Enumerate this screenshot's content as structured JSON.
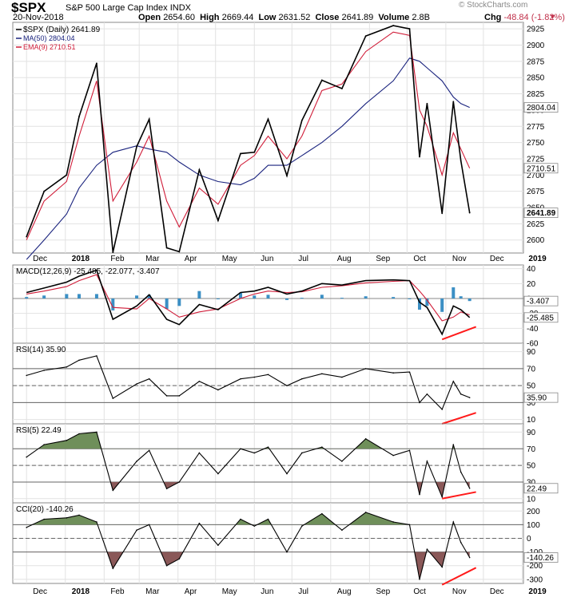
{
  "header": {
    "symbol": "$SPX",
    "name": "S&P 500 Large Cap Index",
    "exchange": "INDX",
    "date": "20-Nov-2018",
    "brand": "© StockCharts.com",
    "open_label": "Open",
    "open": "2654.60",
    "high_label": "High",
    "high": "2669.44",
    "low_label": "Low",
    "low": "2631.52",
    "close_label": "Close",
    "close": "2641.89",
    "volume_label": "Volume",
    "volume": "2.8B",
    "chg_label": "Chg",
    "chg": "-48.84 (-1.82%)"
  },
  "colors": {
    "price": "#000000",
    "ma": "#1a237e",
    "ema": "#d01c38",
    "hist": "#3b8fc4",
    "green_fill": "#6f8f5a",
    "red_fill": "#8a5858",
    "trend": "#ff1a1a",
    "grid": "#bbbbbb",
    "tag_bg": "#ffffff"
  },
  "chart_data": [
    {
      "type": "line",
      "title": "$SPX (Daily) 2641.89",
      "x": [
        "2017-12-01",
        "2017-12-15",
        "2018-01-02",
        "2018-01-12",
        "2018-01-26",
        "2018-02-08",
        "2018-02-27",
        "2018-03-09",
        "2018-03-23",
        "2018-04-02",
        "2018-04-18",
        "2018-05-03",
        "2018-05-21",
        "2018-06-01",
        "2018-06-12",
        "2018-06-27",
        "2018-07-09",
        "2018-07-25",
        "2018-08-10",
        "2018-08-29",
        "2018-09-20",
        "2018-10-03",
        "2018-10-11",
        "2018-10-17",
        "2018-10-29",
        "2018-11-07",
        "2018-11-13",
        "2018-11-20"
      ],
      "series": [
        {
          "name": "$SPX (Daily)",
          "values": [
            2605,
            2675,
            2700,
            2790,
            2872,
            2581,
            2744,
            2786,
            2588,
            2582,
            2708,
            2630,
            2733,
            2735,
            2786,
            2699,
            2784,
            2846,
            2833,
            2914,
            2930,
            2925,
            2728,
            2810,
            2641,
            2813,
            2722,
            2641.89
          ]
        },
        {
          "name": "MA(50)",
          "values": [
            2570,
            2600,
            2640,
            2680,
            2715,
            2735,
            2745,
            2740,
            2735,
            2720,
            2700,
            2690,
            2685,
            2695,
            2715,
            2715,
            2730,
            2750,
            2775,
            2810,
            2845,
            2880,
            2875,
            2865,
            2845,
            2820,
            2810,
            2804.04
          ]
        },
        {
          "name": "EMA(9)",
          "values": [
            2600,
            2660,
            2690,
            2760,
            2845,
            2660,
            2720,
            2760,
            2660,
            2620,
            2680,
            2655,
            2715,
            2730,
            2760,
            2725,
            2760,
            2830,
            2840,
            2890,
            2920,
            2915,
            2800,
            2775,
            2700,
            2765,
            2740,
            2710.51
          ]
        }
      ],
      "yticks": [
        2600,
        2625,
        2650,
        2675,
        2700,
        2725,
        2750,
        2775,
        2800,
        2825,
        2850,
        2875,
        2900,
        2925
      ],
      "ylim": [
        2580,
        2935
      ],
      "tags": [
        "2804.04",
        "2710.51",
        "2641.89"
      ]
    },
    {
      "type": "line",
      "title": "MACD(12,26,9) -25.485, -22.077, -3.407",
      "x": [
        "2017-12-01",
        "2017-12-15",
        "2018-01-02",
        "2018-01-12",
        "2018-01-26",
        "2018-02-08",
        "2018-02-27",
        "2018-03-09",
        "2018-03-23",
        "2018-04-02",
        "2018-04-18",
        "2018-05-03",
        "2018-05-21",
        "2018-06-01",
        "2018-06-12",
        "2018-06-27",
        "2018-07-09",
        "2018-07-25",
        "2018-08-10",
        "2018-08-29",
        "2018-09-20",
        "2018-10-03",
        "2018-10-11",
        "2018-10-17",
        "2018-10-29",
        "2018-11-07",
        "2018-11-13",
        "2018-11-20"
      ],
      "series": [
        {
          "name": "MACD",
          "values": [
            8,
            14,
            22,
            30,
            38,
            -28,
            -10,
            5,
            -28,
            -35,
            -8,
            -15,
            8,
            10,
            15,
            6,
            10,
            20,
            18,
            24,
            25,
            24,
            -5,
            -12,
            -48,
            -10,
            -15,
            -25.485
          ]
        },
        {
          "name": "Signal",
          "values": [
            6,
            10,
            16,
            24,
            32,
            -12,
            -14,
            0,
            -14,
            -25,
            -18,
            -14,
            0,
            6,
            10,
            8,
            9,
            15,
            17,
            21,
            23,
            24,
            10,
            -2,
            -30,
            -25,
            -18,
            -22.077
          ]
        },
        {
          "name": "Histogram",
          "values": [
            2,
            4,
            6,
            6,
            6,
            -16,
            4,
            5,
            -14,
            -10,
            10,
            -1,
            8,
            4,
            5,
            -2,
            1,
            5,
            1,
            3,
            2,
            0,
            -15,
            -10,
            -18,
            15,
            3,
            -3.407
          ]
        }
      ],
      "yticks": [
        -60,
        -40,
        -20,
        0,
        20,
        40
      ],
      "ylim": [
        -60,
        45
      ],
      "tags": [
        "-3.407",
        "-25.485"
      ]
    },
    {
      "type": "line",
      "title": "RSI(14) 35.90",
      "x": [
        "2017-12-01",
        "2017-12-15",
        "2018-01-02",
        "2018-01-12",
        "2018-01-26",
        "2018-02-08",
        "2018-02-27",
        "2018-03-09",
        "2018-03-23",
        "2018-04-02",
        "2018-04-18",
        "2018-05-03",
        "2018-05-21",
        "2018-06-01",
        "2018-06-12",
        "2018-06-27",
        "2018-07-09",
        "2018-07-25",
        "2018-08-10",
        "2018-08-29",
        "2018-09-20",
        "2018-10-03",
        "2018-10-11",
        "2018-10-17",
        "2018-10-29",
        "2018-11-07",
        "2018-11-13",
        "2018-11-20"
      ],
      "series": [
        {
          "name": "RSI(14)",
          "values": [
            62,
            68,
            72,
            80,
            85,
            35,
            52,
            58,
            38,
            38,
            55,
            45,
            58,
            60,
            63,
            50,
            58,
            64,
            60,
            70,
            65,
            66,
            30,
            40,
            22,
            55,
            40,
            35.9
          ]
        }
      ],
      "yticks": [
        10,
        30,
        50,
        70,
        90
      ],
      "ylim": [
        5,
        100
      ],
      "tags": [
        "35.90"
      ]
    },
    {
      "type": "line",
      "title": "RSI(5) 22.49",
      "x": [
        "2017-12-01",
        "2017-12-15",
        "2018-01-02",
        "2018-01-12",
        "2018-01-26",
        "2018-02-08",
        "2018-02-27",
        "2018-03-09",
        "2018-03-23",
        "2018-04-02",
        "2018-04-18",
        "2018-05-03",
        "2018-05-21",
        "2018-06-01",
        "2018-06-12",
        "2018-06-27",
        "2018-07-09",
        "2018-07-25",
        "2018-08-10",
        "2018-08-29",
        "2018-09-20",
        "2018-10-03",
        "2018-10-11",
        "2018-10-17",
        "2018-10-29",
        "2018-11-07",
        "2018-11-13",
        "2018-11-20"
      ],
      "series": [
        {
          "name": "RSI(5)",
          "values": [
            60,
            75,
            80,
            88,
            90,
            20,
            55,
            68,
            22,
            30,
            65,
            40,
            70,
            65,
            72,
            40,
            65,
            72,
            55,
            82,
            62,
            68,
            15,
            55,
            12,
            75,
            42,
            22.49
          ]
        }
      ],
      "yticks": [
        10,
        30,
        50,
        70,
        90
      ],
      "ylim": [
        5,
        100
      ],
      "tags": [
        "22.49"
      ]
    },
    {
      "type": "line",
      "title": "CCI(20) -140.26",
      "x": [
        "2017-12-01",
        "2017-12-15",
        "2018-01-02",
        "2018-01-12",
        "2018-01-26",
        "2018-02-08",
        "2018-02-27",
        "2018-03-09",
        "2018-03-23",
        "2018-04-02",
        "2018-04-18",
        "2018-05-03",
        "2018-05-21",
        "2018-06-01",
        "2018-06-12",
        "2018-06-27",
        "2018-07-09",
        "2018-07-25",
        "2018-08-10",
        "2018-08-29",
        "2018-09-20",
        "2018-10-03",
        "2018-10-11",
        "2018-10-17",
        "2018-10-29",
        "2018-11-07",
        "2018-11-13",
        "2018-11-20"
      ],
      "series": [
        {
          "name": "CCI(20)",
          "values": [
            80,
            140,
            150,
            170,
            120,
            -220,
            60,
            100,
            -200,
            -150,
            110,
            -50,
            140,
            90,
            140,
            -100,
            90,
            180,
            60,
            190,
            120,
            100,
            -300,
            -80,
            -210,
            120,
            -30,
            -140.26
          ]
        }
      ],
      "yticks": [
        -300,
        -200,
        -100,
        0,
        100,
        200
      ],
      "ylim": [
        -330,
        260
      ],
      "tags": [
        "-140.26"
      ]
    }
  ],
  "months": [
    "Dec",
    "2018",
    "Feb",
    "Mar",
    "Apr",
    "May",
    "Jun",
    "Jul",
    "Aug",
    "Sep",
    "Oct",
    "Nov",
    "Dec",
    "2019"
  ]
}
